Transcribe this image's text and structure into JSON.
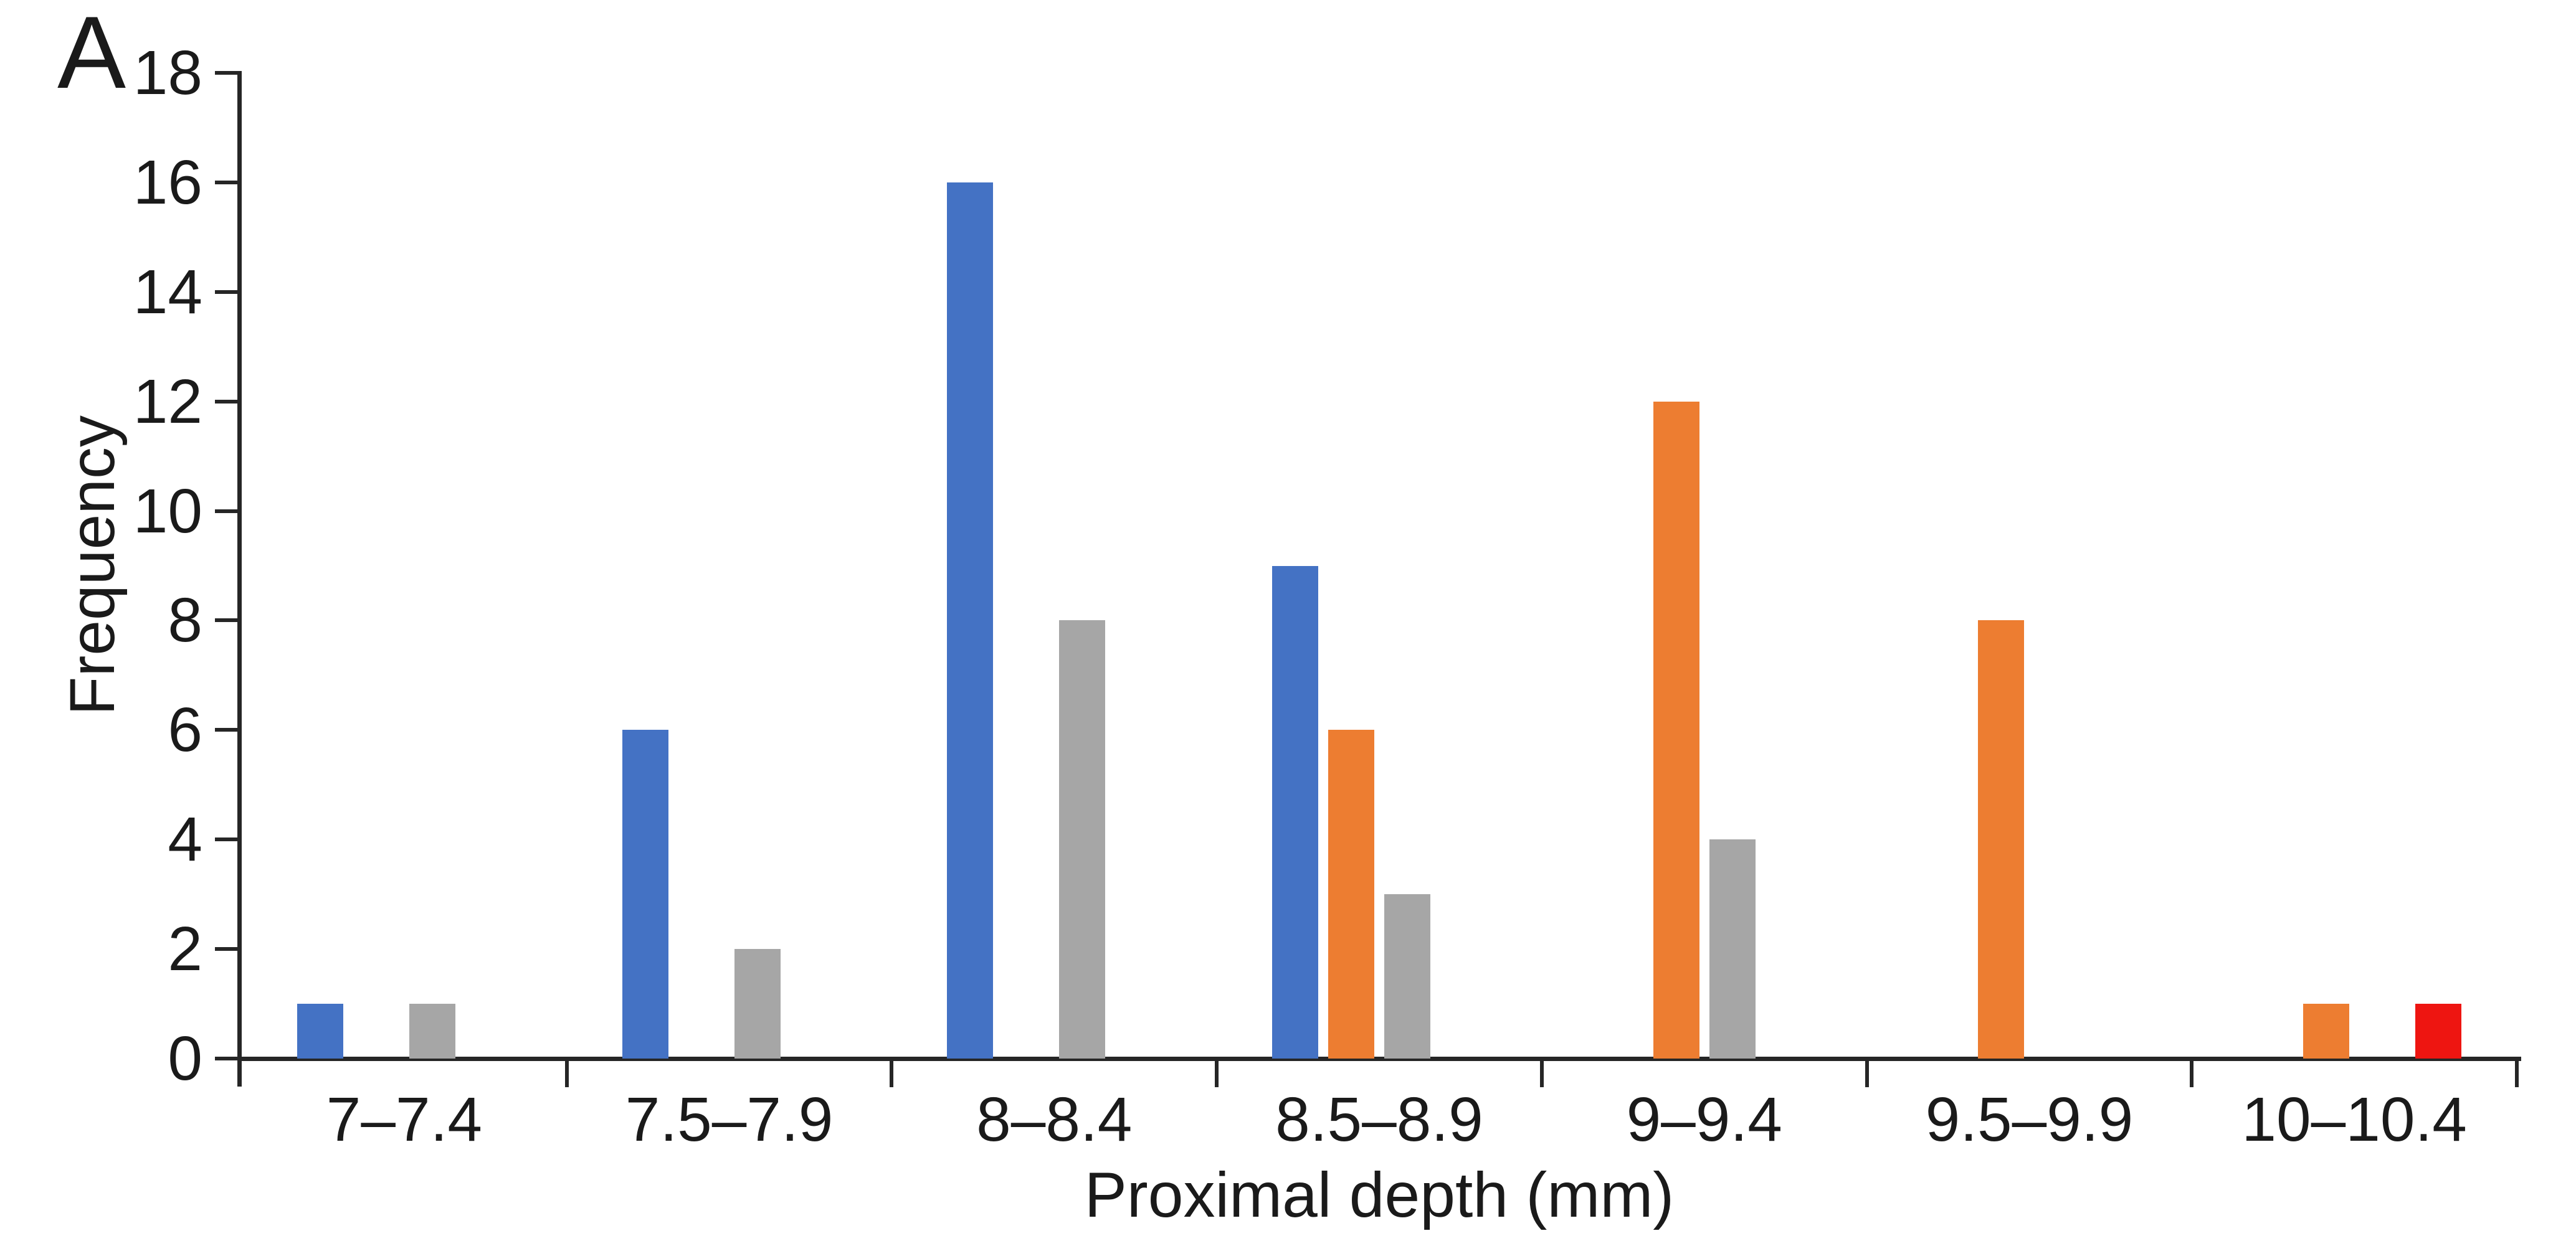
{
  "figure": {
    "panel_label": "A",
    "background": "#ffffff",
    "text_color": "#1a1a1a",
    "axis_color": "#262626"
  },
  "chart_data": {
    "type": "bar",
    "title": "",
    "panel_label": "A",
    "xlabel": "Proximal depth (mm)",
    "ylabel": "Frequency",
    "ylim": [
      0,
      18
    ],
    "ytick_step": 2,
    "yticks": [
      0,
      2,
      4,
      6,
      8,
      10,
      12,
      14,
      16,
      18
    ],
    "grid": false,
    "legend": false,
    "categories": [
      "7–7.4",
      "7.5–7.9",
      "8–8.4",
      "8.5–8.9",
      "9–9.4",
      "9.5–9.9",
      "10–10.4"
    ],
    "series": [
      {
        "name": "blue",
        "color": "#4472C4",
        "values": [
          1,
          6,
          16,
          9,
          0,
          0,
          0
        ]
      },
      {
        "name": "orange",
        "color": "#ED7D31",
        "values": [
          0,
          0,
          0,
          6,
          12,
          8,
          1
        ]
      },
      {
        "name": "gray",
        "color": "#A6A6A6",
        "values": [
          1,
          2,
          8,
          3,
          4,
          0,
          0
        ]
      },
      {
        "name": "red",
        "color": "#EE1511",
        "values": [
          0,
          0,
          0,
          0,
          0,
          0,
          1
        ]
      }
    ]
  }
}
